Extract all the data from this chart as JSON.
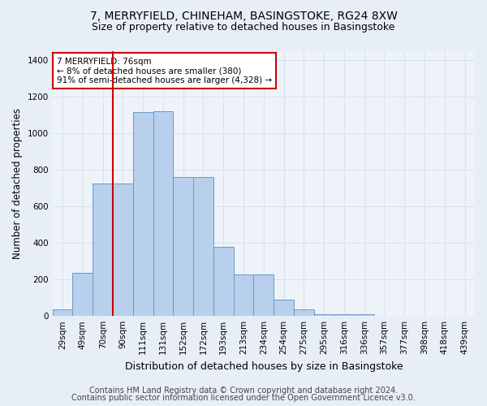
{
  "title1": "7, MERRYFIELD, CHINEHAM, BASINGSTOKE, RG24 8XW",
  "title2": "Size of property relative to detached houses in Basingstoke",
  "xlabel": "Distribution of detached houses by size in Basingstoke",
  "ylabel": "Number of detached properties",
  "categories": [
    "29sqm",
    "49sqm",
    "70sqm",
    "90sqm",
    "111sqm",
    "131sqm",
    "152sqm",
    "172sqm",
    "193sqm",
    "213sqm",
    "234sqm",
    "254sqm",
    "275sqm",
    "295sqm",
    "316sqm",
    "336sqm",
    "357sqm",
    "377sqm",
    "398sqm",
    "418sqm",
    "439sqm"
  ],
  "values": [
    35,
    235,
    725,
    725,
    1115,
    1120,
    760,
    760,
    380,
    225,
    225,
    90,
    35,
    8,
    8,
    8,
    0,
    0,
    0,
    0,
    0
  ],
  "bar_color": "#b8d0eb",
  "bar_edge_color": "#6699cc",
  "vline_color": "#cc0000",
  "vline_x": 2.5,
  "annotation_text": "7 MERRYFIELD: 76sqm\n← 8% of detached houses are smaller (380)\n91% of semi-detached houses are larger (4,328) →",
  "annotation_box_color": "#ffffff",
  "annotation_box_edge_color": "#cc0000",
  "ylim": [
    0,
    1450
  ],
  "yticks": [
    0,
    200,
    400,
    600,
    800,
    1000,
    1200,
    1400
  ],
  "footer1": "Contains HM Land Registry data © Crown copyright and database right 2024.",
  "footer2": "Contains public sector information licensed under the Open Government Licence v3.0.",
  "bg_color": "#e8eef8",
  "plot_bg_color": "#eef3fa",
  "grid_color": "#d8e2f0",
  "title1_fontsize": 10,
  "title2_fontsize": 9,
  "xlabel_fontsize": 9,
  "ylabel_fontsize": 8.5,
  "tick_fontsize": 7.5,
  "annot_fontsize": 7.5,
  "footer_fontsize": 7
}
